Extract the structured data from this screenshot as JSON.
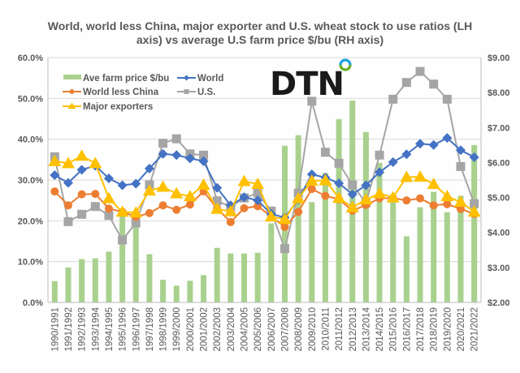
{
  "chart_data": {
    "type": "bar+line",
    "title": "World, world less China, major exporter and U.S. wheat stock to use ratios (LH axis) vs average U.S farm price $/bu (RH axis)",
    "title_lines": [
      "World, world less China, major exporter and U.S. wheat stock to use ratios (LH",
      "axis) vs average U.S farm price $/bu (RH axis)"
    ],
    "categories": [
      "1990/1991",
      "1991/1992",
      "1992/1993",
      "1993/1994",
      "1994/1995",
      "1995/1996",
      "1996/1997",
      "1997/1998",
      "1998/1999",
      "1999/2000",
      "2000/2001",
      "2001/2002",
      "2002/2003",
      "2003/2004",
      "2004/2005",
      "2005/2006",
      "2006/2007",
      "2007/2008",
      "2008/2009",
      "2009/2010",
      "2010/2011",
      "2011/2012",
      "2012/2013",
      "2013/2014",
      "2014/2015",
      "2015/2016",
      "2016/2017",
      "2017/2018",
      "2018/2019",
      "2019/2020",
      "2020/2021",
      "2021/2022"
    ],
    "left_axis": {
      "ylim": [
        0,
        60
      ],
      "ticks": [
        "0.0%",
        "10.0%",
        "20.0%",
        "30.0%",
        "40.0%",
        "50.0%",
        "60.0%"
      ]
    },
    "right_axis": {
      "ylim": [
        2,
        9
      ],
      "ticks": [
        "$2.00",
        "$3.00",
        "$4.00",
        "$5.00",
        "$6.00",
        "$7.00",
        "$8.00",
        "$9.00"
      ]
    },
    "grid": true,
    "legend_position": "top-left",
    "series": [
      {
        "name": "Ave farm price $/bu",
        "kind": "bar",
        "axis": "right",
        "color": "#a9d18e",
        "values": [
          2.61,
          3.0,
          3.24,
          3.26,
          3.45,
          4.55,
          4.3,
          3.38,
          2.65,
          2.48,
          2.62,
          2.78,
          3.56,
          3.4,
          3.4,
          3.42,
          4.26,
          6.48,
          6.78,
          4.87,
          5.7,
          7.24,
          7.77,
          6.87,
          5.99,
          4.89,
          3.89,
          4.72,
          5.16,
          4.58,
          5.05,
          6.5
        ]
      },
      {
        "name": "World",
        "kind": "line",
        "marker": "diamond",
        "axis": "left",
        "color": "#4472c4",
        "values": [
          31.2,
          29.3,
          32.5,
          33.5,
          30.4,
          28.7,
          29.1,
          32.8,
          36.4,
          36.1,
          35.3,
          34.6,
          28.1,
          23.8,
          25.8,
          25.0,
          21.7,
          20.8,
          25.2,
          31.4,
          30.6,
          29.2,
          26.5,
          28.7,
          31.9,
          34.4,
          36.3,
          38.9,
          38.6,
          40.3,
          37.3,
          35.6
        ]
      },
      {
        "name": "World less China",
        "kind": "line",
        "marker": "circle",
        "axis": "left",
        "color": "#ed7d31",
        "values": [
          27.2,
          23.8,
          26.5,
          26.6,
          23.0,
          22.2,
          21.0,
          21.9,
          23.8,
          22.7,
          24.0,
          27.2,
          23.0,
          19.7,
          23.1,
          23.6,
          21.1,
          18.5,
          22.2,
          27.8,
          26.1,
          25.3,
          22.5,
          23.9,
          25.5,
          25.6,
          25.0,
          25.5,
          23.8,
          24.1,
          22.9,
          21.7
        ]
      },
      {
        "name": "U.S.",
        "kind": "line",
        "marker": "square",
        "axis": "left",
        "color": "#a5a5a5",
        "values": [
          35.7,
          19.8,
          21.6,
          23.5,
          21.3,
          15.3,
          19.5,
          28.8,
          39.0,
          40.1,
          36.4,
          36.1,
          24.9,
          23.4,
          25.6,
          26.8,
          22.4,
          13.2,
          26.8,
          49.3,
          36.8,
          34.1,
          28.8,
          24.4,
          36.1,
          49.8,
          53.9,
          56.6,
          53.5,
          49.8,
          33.3,
          24.2
        ]
      },
      {
        "name": "Major exporters",
        "kind": "line",
        "marker": "triangle",
        "axis": "left",
        "color": "#ffc000",
        "values": [
          34.6,
          34.1,
          35.9,
          34.1,
          25.5,
          22.2,
          22.0,
          27.4,
          28.3,
          26.7,
          26.0,
          28.8,
          22.9,
          22.3,
          29.7,
          29.0,
          21.0,
          20.4,
          25.5,
          29.8,
          29.9,
          25.6,
          23.3,
          25.2,
          26.7,
          25.7,
          30.7,
          30.8,
          29.0,
          26.0,
          24.6,
          22.2
        ]
      }
    ]
  },
  "brand": {
    "logo_text": "DTN",
    "accent_colors": [
      "#6ab023",
      "#1fa0dc"
    ]
  }
}
